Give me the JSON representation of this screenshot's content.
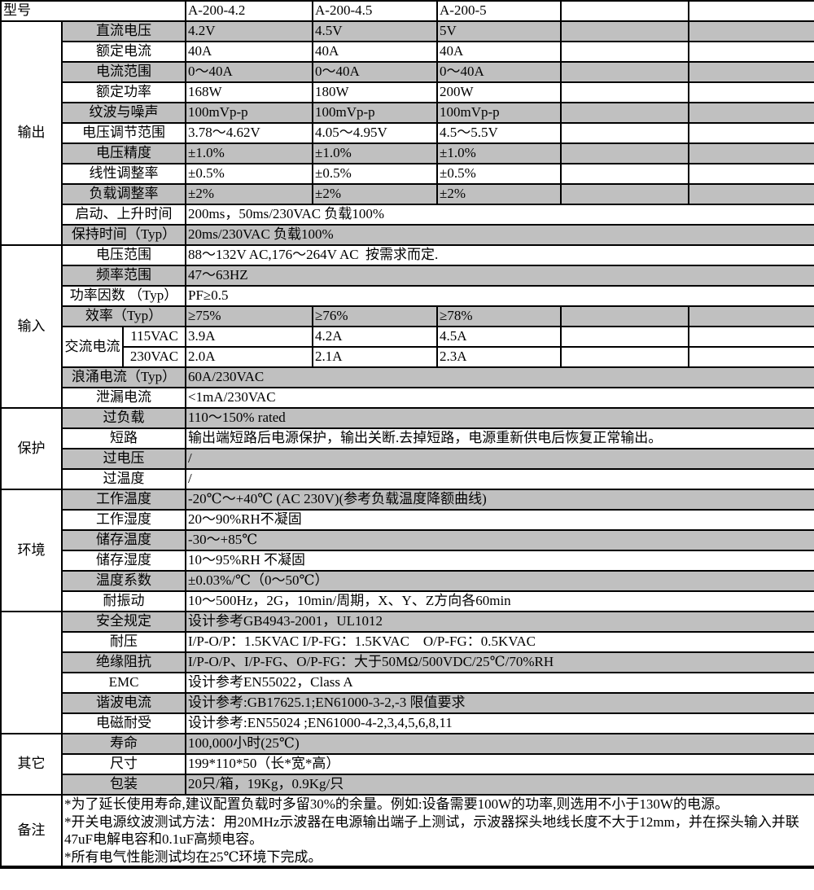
{
  "colors": {
    "row_shade": "#c0c0c0",
    "border": "#000000",
    "background": "#ffffff"
  },
  "header": {
    "label": "型号",
    "models": [
      "A-200-4.2",
      "A-200-4.5",
      "A-200-5",
      "",
      ""
    ]
  },
  "sections": [
    {
      "category": "输出",
      "rows": [
        {
          "label": "直流电压",
          "values": [
            "4.2V",
            "4.5V",
            "5V",
            "",
            ""
          ],
          "shaded": true
        },
        {
          "label": "额定电流",
          "values": [
            "40A",
            "40A",
            "40A",
            "",
            ""
          ],
          "shaded": false
        },
        {
          "label": "电流范围",
          "values": [
            "0～40A",
            "0～40A",
            "0～40A",
            "",
            ""
          ],
          "shaded": true
        },
        {
          "label": "额定功率",
          "values": [
            "168W",
            "180W",
            "200W",
            "",
            ""
          ],
          "shaded": false
        },
        {
          "label": "纹波与噪声",
          "values": [
            "100mVp-p",
            "100mVp-p",
            "100mVp-p",
            "",
            ""
          ],
          "shaded": true
        },
        {
          "label": "电压调节范围",
          "values": [
            "3.78～4.62V",
            "4.05～4.95V",
            "4.5～5.5V",
            "",
            ""
          ],
          "shaded": false
        },
        {
          "label": "电压精度",
          "values": [
            "±1.0%",
            "±1.0%",
            "±1.0%",
            "",
            ""
          ],
          "shaded": true
        },
        {
          "label": "线性调整率",
          "values": [
            "±0.5%",
            "±0.5%",
            "±0.5%",
            "",
            ""
          ],
          "shaded": false
        },
        {
          "label": "负载调整率",
          "values": [
            "±2%",
            "±2%",
            "±2%",
            "",
            ""
          ],
          "shaded": true
        },
        {
          "label": "启动、上升时间",
          "span": "200ms，50ms/230VAC 负载100%",
          "shaded": false
        },
        {
          "label": "保持时间（Typ）",
          "span": "20ms/230VAC 负载100%",
          "shaded": true
        }
      ]
    },
    {
      "category": "输入",
      "rows": [
        {
          "label": "电压范围",
          "span": "88～132V AC,176～264V AC  按需求而定.",
          "shaded": false
        },
        {
          "label": "频率范围",
          "span": "47～63HZ",
          "shaded": true
        },
        {
          "label": "功率因数 （Typ）",
          "span": "PF≥0.5",
          "shaded": false
        },
        {
          "label": "效率（Typ）",
          "values": [
            "≥75%",
            "≥76%",
            "≥78%",
            "",
            ""
          ],
          "shaded": true
        },
        {
          "label": "交流电流",
          "sublabel": "115VAC",
          "values": [
            "3.9A",
            "4.2A",
            "4.5A",
            "",
            ""
          ],
          "shaded": false,
          "group_start": true
        },
        {
          "sublabel": "230VAC",
          "values": [
            "2.0A",
            "2.1A",
            "2.3A",
            "",
            ""
          ],
          "shaded": false,
          "group_end": true
        },
        {
          "label": "浪涌电流（Typ）",
          "span": "60A/230VAC",
          "shaded": true
        },
        {
          "label": "泄漏电流",
          "span": "<1mA/230VAC",
          "shaded": false
        }
      ]
    },
    {
      "category": "保护",
      "rows": [
        {
          "label": "过负载",
          "span": "110～150% rated",
          "shaded": true
        },
        {
          "label": "短路",
          "span": "输出端短路后电源保护，输出关断.去掉短路，电源重新供电后恢复正常输出。",
          "shaded": false
        },
        {
          "label": "过电压",
          "span": "/",
          "shaded": true
        },
        {
          "label": "过温度",
          "span": "/",
          "shaded": false
        }
      ]
    },
    {
      "category": "环境",
      "rows": [
        {
          "label": "工作温度",
          "span": "-20℃～+40℃ (AC 230V)(参考负载温度降额曲线)",
          "shaded": true
        },
        {
          "label": "工作湿度",
          "span": "20～90%RH不凝固",
          "shaded": false
        },
        {
          "label": "储存温度",
          "span": "-30～+85℃",
          "shaded": true
        },
        {
          "label": "储存湿度",
          "span": "10～95%RH 不凝固",
          "shaded": false
        },
        {
          "label": "温度系数",
          "span": "±0.03%/℃（0～50℃）",
          "shaded": true
        },
        {
          "label": "耐振动",
          "span": "10～500Hz，2G，10min/周期，X、Y、Z方向各60min",
          "shaded": false
        }
      ]
    },
    {
      "category": "",
      "rows": [
        {
          "label": "安全规定",
          "span": "设计参考GB4943-2001，UL1012",
          "shaded": true
        },
        {
          "label": "耐压",
          "span": "I/P-O/P：1.5KVAC I/P-FG：1.5KVAC    O/P-FG：0.5KVAC",
          "shaded": false
        },
        {
          "label": "绝缘阻抗",
          "span": "I/P-O/P、I/P-FG、O/P-FG：大于50MΩ/500VDC/25℃/70%RH",
          "shaded": true
        },
        {
          "label": "EMC",
          "span": "设计参考EN55022，Class A",
          "shaded": false
        },
        {
          "label": "谐波电流",
          "span": "设计参考:GB17625.1;EN61000-3-2,-3 限值要求",
          "shaded": true
        },
        {
          "label": "电磁耐受",
          "span": "设计参考:EN55024 ;EN61000-4-2,3,4,5,6,8,11",
          "shaded": false
        }
      ]
    },
    {
      "category": "其它",
      "rows": [
        {
          "label": "寿命",
          "span": "100,000小时(25℃)",
          "shaded": true
        },
        {
          "label": "尺寸",
          "span": "199*110*50（长*宽*高）",
          "shaded": false
        },
        {
          "label": "包装",
          "span": "20只/箱，19Kg，0.9Kg/只",
          "shaded": true
        }
      ]
    }
  ],
  "notes": {
    "category": "备注",
    "lines": [
      "*为了延长使用寿命,建议配置负载时多留30%的余量。例如:设备需要100W的功率,则选用不小于130W的电源。",
      "*开关电源纹波测试方法：用20MHz示波器在电源输出端子上测试，示波器探头地线长度不大于12mm，并在探头输入并联47uF电解电容和0.1uF高频电容。",
      "*所有电气性能测试均在25℃环境下完成。"
    ]
  }
}
